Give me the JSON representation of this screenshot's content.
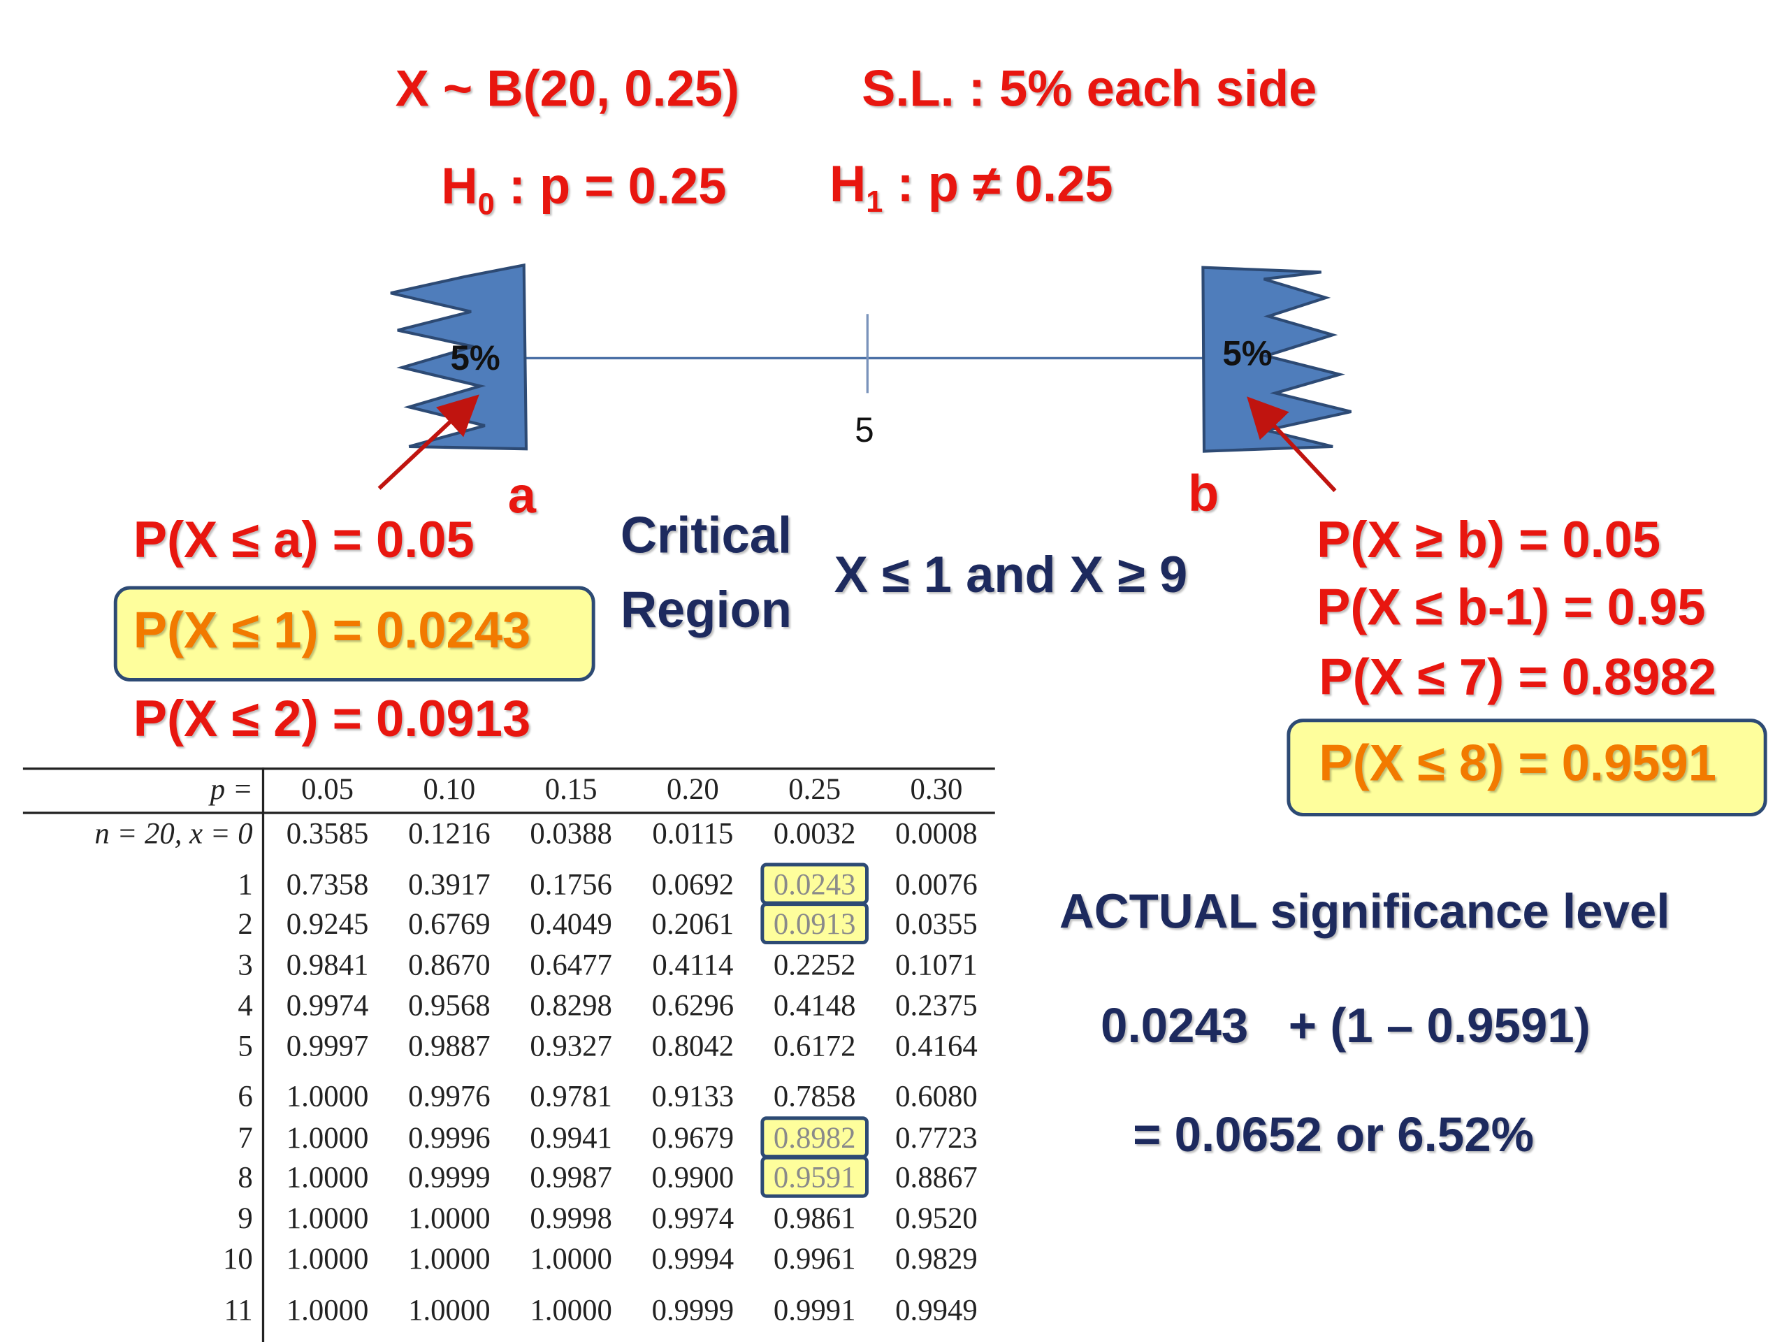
{
  "header": {
    "distribution": "X ~ B(20, 0.25)",
    "significance": "S.L. : 5% each side",
    "h0": {
      "prefix": "H",
      "sub": "0",
      "rest": " : p = 0.25"
    },
    "h1": {
      "prefix": "H",
      "sub": "1",
      "rest": " : p ≠ 0.25"
    }
  },
  "diagram": {
    "left_tail_label": "5%",
    "right_tail_label": "5%",
    "center_tick_label": "5",
    "left_marker": "a",
    "right_marker": "b",
    "tail_color": "#4f7dbb",
    "arrow_color": "#c0140f"
  },
  "left_panel": {
    "line1": "P(X ≤ a) = 0.05",
    "line2_highlight": "P(X ≤ 1) = 0.0243",
    "line3": "P(X ≤ 2) = 0.0913"
  },
  "critical_region": {
    "title_line1": "Critical",
    "title_line2": "Region",
    "value": "X ≤ 1  and  X ≥ 9"
  },
  "right_panel": {
    "line1": "P(X ≥ b) = 0.05",
    "line2": "P(X ≤ b-1) = 0.95",
    "line3": "P(X ≤ 7) = 0.8982",
    "line4_highlight": "P(X ≤ 8) = 0.9591"
  },
  "actual_sl": {
    "title": "ACTUAL significance level",
    "expression": "0.0243   + (1 – 0.9591)",
    "result": "= 0.0652 or 6.52%"
  },
  "table": {
    "header_label": "p =",
    "p_values": [
      "0.05",
      "0.10",
      "0.15",
      "0.20",
      "0.25",
      "0.30"
    ],
    "row_labels": [
      "n = 20, x = 0",
      "1",
      "2",
      "3",
      "4",
      "5",
      "6",
      "7",
      "8",
      "9",
      "10",
      "11"
    ],
    "rows": [
      [
        "0.3585",
        "0.1216",
        "0.0388",
        "0.0115",
        "0.0032",
        "0.0008"
      ],
      [
        "0.7358",
        "0.3917",
        "0.1756",
        "0.0692",
        "0.0243",
        "0.0076"
      ],
      [
        "0.9245",
        "0.6769",
        "0.4049",
        "0.2061",
        "0.0913",
        "0.0355"
      ],
      [
        "0.9841",
        "0.8670",
        "0.6477",
        "0.4114",
        "0.2252",
        "0.1071"
      ],
      [
        "0.9974",
        "0.9568",
        "0.8298",
        "0.6296",
        "0.4148",
        "0.2375"
      ],
      [
        "0.9997",
        "0.9887",
        "0.9327",
        "0.8042",
        "0.6172",
        "0.4164"
      ],
      [
        "1.0000",
        "0.9976",
        "0.9781",
        "0.9133",
        "0.7858",
        "0.6080"
      ],
      [
        "1.0000",
        "0.9996",
        "0.9941",
        "0.9679",
        "0.8982",
        "0.7723"
      ],
      [
        "1.0000",
        "0.9999",
        "0.9987",
        "0.9900",
        "0.9591",
        "0.8867"
      ],
      [
        "1.0000",
        "1.0000",
        "0.9998",
        "0.9974",
        "0.9861",
        "0.9520"
      ],
      [
        "1.0000",
        "1.0000",
        "1.0000",
        "0.9994",
        "0.9961",
        "0.9829"
      ],
      [
        "1.0000",
        "1.0000",
        "1.0000",
        "0.9999",
        "0.9991",
        "0.9949"
      ]
    ],
    "highlighted_cells": [
      [
        1,
        4
      ],
      [
        2,
        4
      ],
      [
        7,
        4
      ],
      [
        8,
        4
      ]
    ]
  }
}
